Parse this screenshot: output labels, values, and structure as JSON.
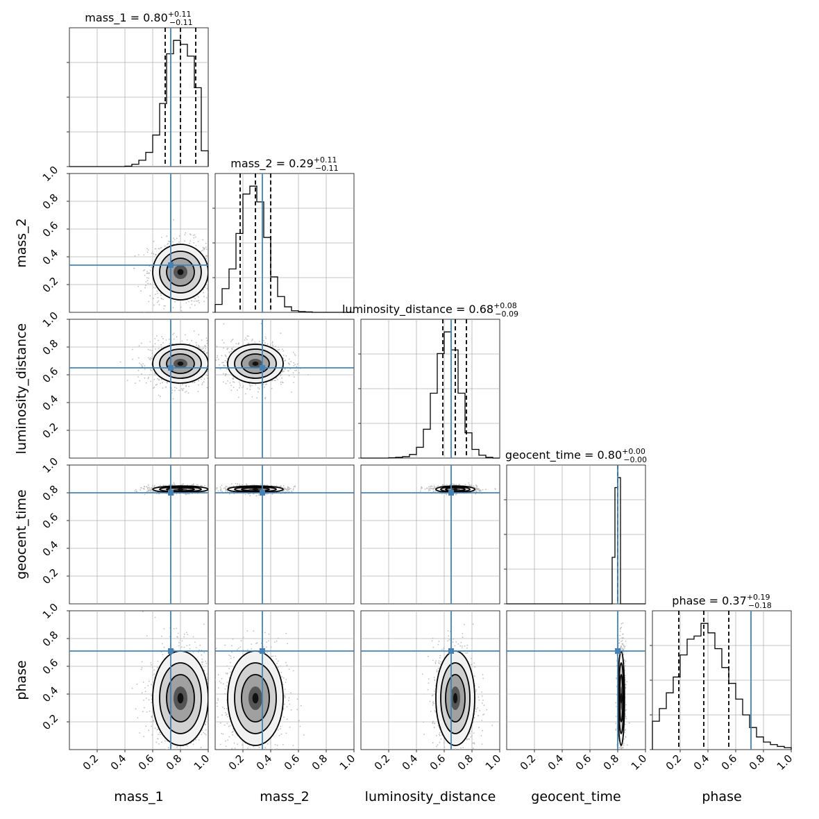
{
  "chart_data": {
    "type": "corner",
    "parameters": [
      "mass_1",
      "mass_2",
      "luminosity_distance",
      "geocent_time",
      "phase"
    ],
    "titles": [
      {
        "name": "mass_1",
        "median": "0.80",
        "plus": "+0.11",
        "minus": "−0.11"
      },
      {
        "name": "mass_2",
        "median": "0.29",
        "plus": "+0.11",
        "minus": "−0.11"
      },
      {
        "name": "luminosity_distance",
        "median": "0.68",
        "plus": "+0.08",
        "minus": "−0.09"
      },
      {
        "name": "geocent_time",
        "median": "0.80",
        "plus": "+0.00",
        "minus": "−0.00"
      },
      {
        "name": "phase",
        "median": "0.37",
        "plus": "+0.19",
        "minus": "−0.18"
      }
    ],
    "axis_range": [
      0,
      1
    ],
    "tick_labels": [
      "0.2",
      "0.4",
      "0.6",
      "0.8",
      "1.0"
    ],
    "truths": [
      0.73,
      0.34,
      0.65,
      0.8,
      0.71
    ],
    "quantiles": [
      [
        0.69,
        0.8,
        0.91
      ],
      [
        0.18,
        0.29,
        0.4
      ],
      [
        0.59,
        0.68,
        0.76
      ],
      [
        0.8,
        0.8,
        0.8
      ],
      [
        0.19,
        0.37,
        0.55
      ]
    ],
    "marginals": [
      {
        "bins": [
          0.4,
          0.45,
          0.5,
          0.55,
          0.6,
          0.65,
          0.7,
          0.75,
          0.8,
          0.85,
          0.9,
          0.95,
          1.0
        ],
        "counts": [
          0.5,
          3,
          8,
          18,
          40,
          80,
          143,
          160,
          155,
          140,
          100,
          20
        ]
      },
      {
        "bins": [
          0.0,
          0.05,
          0.1,
          0.15,
          0.2,
          0.25,
          0.3,
          0.35,
          0.4,
          0.45,
          0.5,
          0.55,
          0.6,
          0.65,
          0.7
        ],
        "counts": [
          10,
          30,
          55,
          100,
          150,
          160,
          140,
          95,
          45,
          20,
          7,
          2,
          1,
          0.5
        ]
      },
      {
        "bins": [
          0.2,
          0.25,
          0.3,
          0.35,
          0.4,
          0.45,
          0.5,
          0.55,
          0.6,
          0.65,
          0.7,
          0.75,
          0.8,
          0.85,
          0.9,
          0.95
        ],
        "counts": [
          0.5,
          1,
          2,
          5,
          15,
          40,
          90,
          145,
          175,
          150,
          90,
          35,
          12,
          4,
          1
        ]
      },
      {
        "bins": [
          0.76,
          0.78,
          0.8,
          0.82,
          0.84
        ],
        "counts": [
          70,
          175,
          190,
          0
        ]
      },
      {
        "bins": [
          0.0,
          0.05,
          0.1,
          0.15,
          0.2,
          0.25,
          0.3,
          0.35,
          0.4,
          0.45,
          0.5,
          0.55,
          0.6,
          0.65,
          0.7,
          0.75,
          0.8,
          0.85,
          0.9,
          0.95,
          1.0
        ],
        "counts": [
          45,
          65,
          90,
          115,
          150,
          175,
          180,
          200,
          185,
          160,
          130,
          105,
          80,
          55,
          35,
          20,
          12,
          8,
          5,
          3
        ]
      }
    ],
    "distributions": [
      {
        "mean": 0.8,
        "sd": 0.1
      },
      {
        "mean": 0.29,
        "sd": 0.1
      },
      {
        "mean": 0.68,
        "sd": 0.07
      },
      {
        "mean": 0.825,
        "sd": 0.012
      },
      {
        "mean": 0.37,
        "sd": 0.17
      }
    ],
    "grid": true
  }
}
